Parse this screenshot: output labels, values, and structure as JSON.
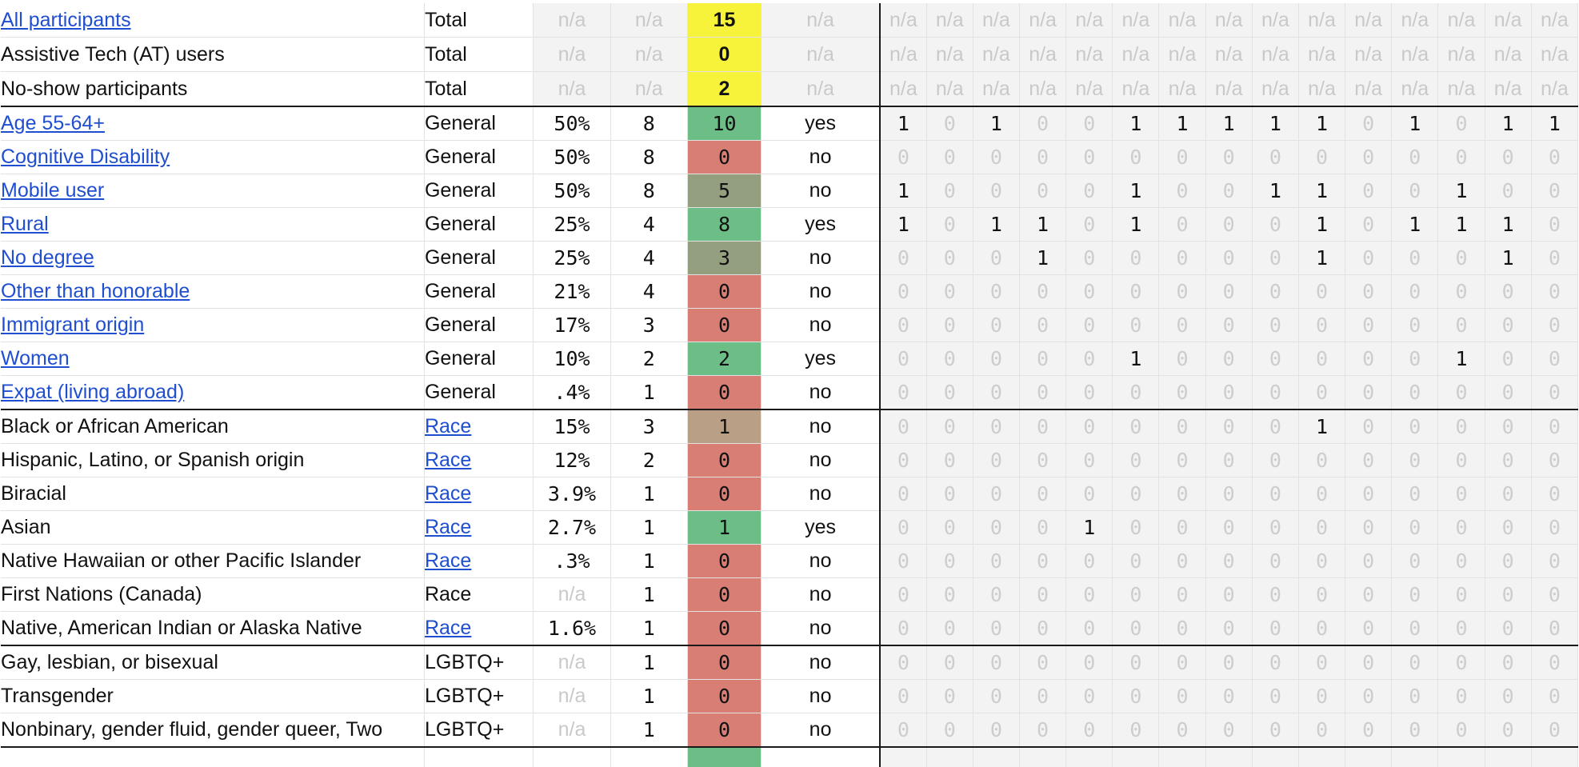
{
  "colors": {
    "yellow": "#f7f23a",
    "green": "#6dbd86",
    "red": "#d97e75",
    "olive": "#949f80",
    "tan": "#b99f86",
    "link": "#1f4fd0"
  },
  "grid_columns": 15,
  "rows": [
    {
      "label": "All participants",
      "label_link": true,
      "category": "Total",
      "category_link": false,
      "pct": "n/a",
      "target": "n/a",
      "count": "15",
      "count_color": "yellow",
      "met": "n/a",
      "grid": [
        "n/a",
        "n/a",
        "n/a",
        "n/a",
        "n/a",
        "n/a",
        "n/a",
        "n/a",
        "n/a",
        "n/a",
        "n/a",
        "n/a",
        "n/a",
        "n/a",
        "n/a"
      ]
    },
    {
      "label": "Assistive Tech (AT) users",
      "label_link": false,
      "category": "Total",
      "category_link": false,
      "pct": "n/a",
      "target": "n/a",
      "count": "0",
      "count_color": "yellow",
      "met": "n/a",
      "grid": [
        "n/a",
        "n/a",
        "n/a",
        "n/a",
        "n/a",
        "n/a",
        "n/a",
        "n/a",
        "n/a",
        "n/a",
        "n/a",
        "n/a",
        "n/a",
        "n/a",
        "n/a"
      ]
    },
    {
      "label": "No-show participants",
      "label_link": false,
      "category": "Total",
      "category_link": false,
      "pct": "n/a",
      "target": "n/a",
      "count": "2",
      "count_color": "yellow",
      "met": "n/a",
      "section_end": true,
      "grid": [
        "n/a",
        "n/a",
        "n/a",
        "n/a",
        "n/a",
        "n/a",
        "n/a",
        "n/a",
        "n/a",
        "n/a",
        "n/a",
        "n/a",
        "n/a",
        "n/a",
        "n/a"
      ]
    },
    {
      "label": "Age 55-64+",
      "label_link": true,
      "category": "General",
      "category_link": false,
      "pct": "50%",
      "target": "8",
      "count": "10",
      "count_color": "green",
      "met": "yes",
      "grid": [
        "1",
        "0",
        "1",
        "0",
        "0",
        "1",
        "1",
        "1",
        "1",
        "1",
        "0",
        "1",
        "0",
        "1",
        "1"
      ]
    },
    {
      "label": "Cognitive Disability",
      "label_link": true,
      "category": "General",
      "category_link": false,
      "pct": "50%",
      "target": "8",
      "count": "0",
      "count_color": "red",
      "met": "no",
      "grid": [
        "0",
        "0",
        "0",
        "0",
        "0",
        "0",
        "0",
        "0",
        "0",
        "0",
        "0",
        "0",
        "0",
        "0",
        "0"
      ]
    },
    {
      "label": "Mobile user",
      "label_link": true,
      "category": "General",
      "category_link": false,
      "pct": "50%",
      "target": "8",
      "count": "5",
      "count_color": "olive",
      "met": "no",
      "grid": [
        "1",
        "0",
        "0",
        "0",
        "0",
        "1",
        "0",
        "0",
        "1",
        "1",
        "0",
        "0",
        "1",
        "0",
        "0"
      ]
    },
    {
      "label": "Rural",
      "label_link": true,
      "category": "General",
      "category_link": false,
      "pct": "25%",
      "target": "4",
      "count": "8",
      "count_color": "green",
      "met": "yes",
      "grid": [
        "1",
        "0",
        "1",
        "1",
        "0",
        "1",
        "0",
        "0",
        "0",
        "1",
        "0",
        "1",
        "1",
        "1",
        "0"
      ]
    },
    {
      "label": "No degree",
      "label_link": true,
      "category": "General",
      "category_link": false,
      "pct": "25%",
      "target": "4",
      "count": "3",
      "count_color": "olive",
      "met": "no",
      "grid": [
        "0",
        "0",
        "0",
        "1",
        "0",
        "0",
        "0",
        "0",
        "0",
        "1",
        "0",
        "0",
        "0",
        "1",
        "0"
      ]
    },
    {
      "label": "Other than honorable",
      "label_link": true,
      "category": "General",
      "category_link": false,
      "pct": "21%",
      "target": "4",
      "count": "0",
      "count_color": "red",
      "met": "no",
      "grid": [
        "0",
        "0",
        "0",
        "0",
        "0",
        "0",
        "0",
        "0",
        "0",
        "0",
        "0",
        "0",
        "0",
        "0",
        "0"
      ]
    },
    {
      "label": "Immigrant origin",
      "label_link": true,
      "category": "General",
      "category_link": false,
      "pct": "17%",
      "target": "3",
      "count": "0",
      "count_color": "red",
      "met": "no",
      "grid": [
        "0",
        "0",
        "0",
        "0",
        "0",
        "0",
        "0",
        "0",
        "0",
        "0",
        "0",
        "0",
        "0",
        "0",
        "0"
      ]
    },
    {
      "label": "Women",
      "label_link": true,
      "category": "General",
      "category_link": false,
      "pct": "10%",
      "target": "2",
      "count": "2",
      "count_color": "green",
      "met": "yes",
      "grid": [
        "0",
        "0",
        "0",
        "0",
        "0",
        "1",
        "0",
        "0",
        "0",
        "0",
        "0",
        "0",
        "1",
        "0",
        "0"
      ]
    },
    {
      "label": "Expat (living abroad)",
      "label_link": true,
      "category": "General",
      "category_link": false,
      "pct": ".4%",
      "target": "1",
      "count": "0",
      "count_color": "red",
      "met": "no",
      "section_end": true,
      "grid": [
        "0",
        "0",
        "0",
        "0",
        "0",
        "0",
        "0",
        "0",
        "0",
        "0",
        "0",
        "0",
        "0",
        "0",
        "0"
      ]
    },
    {
      "label": "Black or African American",
      "label_link": false,
      "category": "Race",
      "category_link": true,
      "pct": "15%",
      "target": "3",
      "count": "1",
      "count_color": "tan",
      "met": "no",
      "grid": [
        "0",
        "0",
        "0",
        "0",
        "0",
        "0",
        "0",
        "0",
        "0",
        "1",
        "0",
        "0",
        "0",
        "0",
        "0"
      ]
    },
    {
      "label": "Hispanic, Latino, or Spanish origin",
      "label_link": false,
      "category": "Race",
      "category_link": true,
      "pct": "12%",
      "target": "2",
      "count": "0",
      "count_color": "red",
      "met": "no",
      "grid": [
        "0",
        "0",
        "0",
        "0",
        "0",
        "0",
        "0",
        "0",
        "0",
        "0",
        "0",
        "0",
        "0",
        "0",
        "0"
      ]
    },
    {
      "label": "Biracial",
      "label_link": false,
      "category": "Race",
      "category_link": true,
      "pct": "3.9%",
      "target": "1",
      "count": "0",
      "count_color": "red",
      "met": "no",
      "grid": [
        "0",
        "0",
        "0",
        "0",
        "0",
        "0",
        "0",
        "0",
        "0",
        "0",
        "0",
        "0",
        "0",
        "0",
        "0"
      ]
    },
    {
      "label": "Asian",
      "label_link": false,
      "category": "Race",
      "category_link": true,
      "pct": "2.7%",
      "target": "1",
      "count": "1",
      "count_color": "green",
      "met": "yes",
      "grid": [
        "0",
        "0",
        "0",
        "0",
        "1",
        "0",
        "0",
        "0",
        "0",
        "0",
        "0",
        "0",
        "0",
        "0",
        "0"
      ]
    },
    {
      "label": "Native Hawaiian or other Pacific Islander",
      "label_link": false,
      "category": "Race",
      "category_link": true,
      "pct": ".3%",
      "target": "1",
      "count": "0",
      "count_color": "red",
      "met": "no",
      "grid": [
        "0",
        "0",
        "0",
        "0",
        "0",
        "0",
        "0",
        "0",
        "0",
        "0",
        "0",
        "0",
        "0",
        "0",
        "0"
      ]
    },
    {
      "label": "First Nations (Canada)",
      "label_link": false,
      "category": "Race",
      "category_link": false,
      "pct": "n/a",
      "target": "1",
      "count": "0",
      "count_color": "red",
      "met": "no",
      "grid": [
        "0",
        "0",
        "0",
        "0",
        "0",
        "0",
        "0",
        "0",
        "0",
        "0",
        "0",
        "0",
        "0",
        "0",
        "0"
      ]
    },
    {
      "label": "Native, American Indian or Alaska Native",
      "label_link": false,
      "category": "Race",
      "category_link": true,
      "pct": "1.6%",
      "target": "1",
      "count": "0",
      "count_color": "red",
      "met": "no",
      "section_end": true,
      "grid": [
        "0",
        "0",
        "0",
        "0",
        "0",
        "0",
        "0",
        "0",
        "0",
        "0",
        "0",
        "0",
        "0",
        "0",
        "0"
      ]
    },
    {
      "label": "Gay, lesbian, or bisexual",
      "label_link": false,
      "category": "LGBTQ+",
      "category_link": false,
      "pct": "n/a",
      "target": "1",
      "count": "0",
      "count_color": "red",
      "met": "no",
      "grid": [
        "0",
        "0",
        "0",
        "0",
        "0",
        "0",
        "0",
        "0",
        "0",
        "0",
        "0",
        "0",
        "0",
        "0",
        "0"
      ]
    },
    {
      "label": "Transgender",
      "label_link": false,
      "category": "LGBTQ+",
      "category_link": false,
      "pct": "n/a",
      "target": "1",
      "count": "0",
      "count_color": "red",
      "met": "no",
      "grid": [
        "0",
        "0",
        "0",
        "0",
        "0",
        "0",
        "0",
        "0",
        "0",
        "0",
        "0",
        "0",
        "0",
        "0",
        "0"
      ]
    },
    {
      "label": "Nonbinary, gender fluid, gender queer, Two",
      "label_link": false,
      "category": "LGBTQ+",
      "category_link": false,
      "pct": "n/a",
      "target": "1",
      "count": "0",
      "count_color": "red",
      "met": "no",
      "section_end": true,
      "grid": [
        "0",
        "0",
        "0",
        "0",
        "0",
        "0",
        "0",
        "0",
        "0",
        "0",
        "0",
        "0",
        "0",
        "0",
        "0"
      ]
    }
  ]
}
